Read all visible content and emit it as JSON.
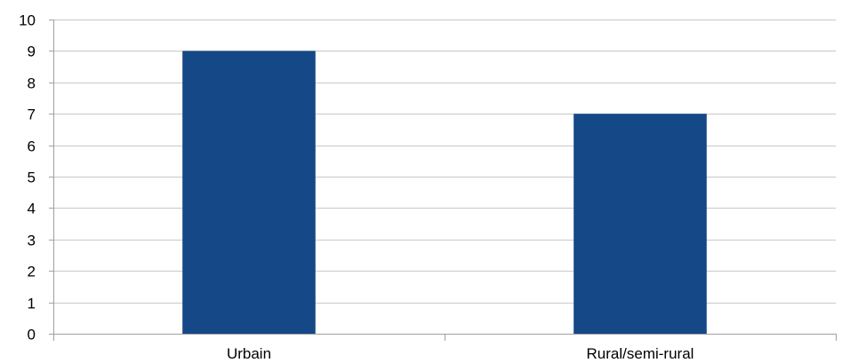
{
  "chart_data": {
    "type": "bar",
    "title": "",
    "xlabel": "",
    "ylabel": "",
    "categories": [
      "Urbain",
      "Rural/semi-rural"
    ],
    "series": [
      {
        "values": [
          9,
          7
        ]
      }
    ],
    "ylim": [
      0,
      10
    ],
    "yticks": [
      "0",
      "1",
      "2",
      "3",
      "4",
      "5",
      "6",
      "7",
      "8",
      "9",
      "10"
    ],
    "grid": true,
    "legend": "none",
    "colors": {
      "bar": "#154887",
      "grid": "#c8c8c8",
      "axis": "#a0a0a0"
    }
  }
}
